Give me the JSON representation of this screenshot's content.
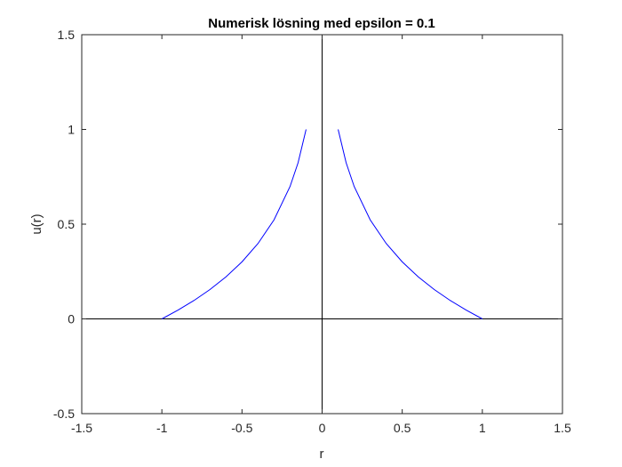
{
  "chart_data": {
    "type": "line",
    "title": "Numerisk lösning med epsilon = 0.1",
    "xlabel": "r",
    "ylabel": "u(r)",
    "xlim": [
      -1.5,
      1.5
    ],
    "ylim": [
      -0.5,
      1.5
    ],
    "xticks": [
      -1.5,
      -1,
      -0.5,
      0,
      0.5,
      1,
      1.5
    ],
    "xtick_labels": [
      "-1.5",
      "-1",
      "-0.5",
      "0",
      "0.5",
      "1",
      "1.5"
    ],
    "yticks": [
      -0.5,
      0,
      0.5,
      1,
      1.5
    ],
    "ytick_labels": [
      "-0.5",
      "0",
      "0.5",
      "1",
      "1.5"
    ],
    "grid": false,
    "reference_lines": {
      "x": 0,
      "y": 0,
      "color": "#000000"
    },
    "series": [
      {
        "color": "#0000ff",
        "x": [
          -1.0,
          -0.9,
          -0.8,
          -0.7,
          -0.6,
          -0.5,
          -0.4,
          -0.3,
          -0.2,
          -0.15,
          -0.1
        ],
        "y": [
          0.0,
          0.0458,
          0.0969,
          0.1549,
          0.2218,
          0.301,
          0.3979,
          0.5229,
          0.699,
          0.8239,
          1.0
        ]
      },
      {
        "color": "#0000ff",
        "x": [
          0.1,
          0.15,
          0.2,
          0.3,
          0.4,
          0.5,
          0.6,
          0.7,
          0.8,
          0.9,
          1.0
        ],
        "y": [
          1.0,
          0.8239,
          0.699,
          0.5229,
          0.3979,
          0.301,
          0.2218,
          0.1549,
          0.0969,
          0.0458,
          0.0
        ]
      }
    ]
  }
}
